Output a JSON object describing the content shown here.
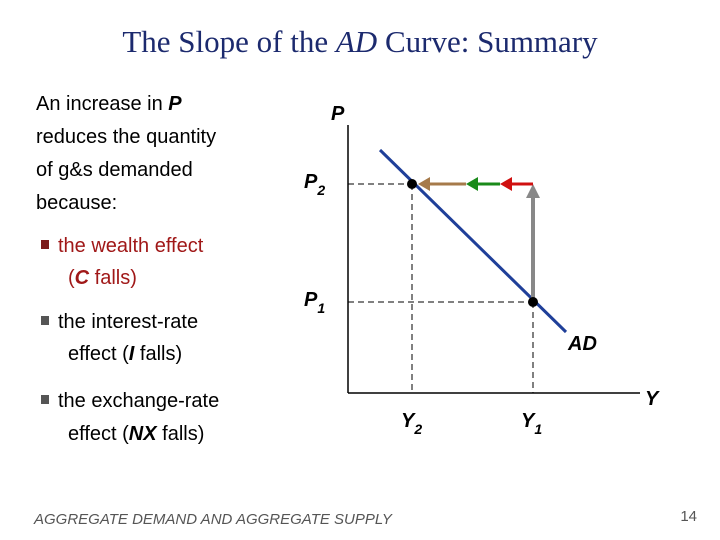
{
  "title": {
    "parts": [
      "The Slope of the ",
      "AD",
      " Curve: Summary"
    ]
  },
  "body": {
    "lines": [
      [
        "An increase in ",
        "P"
      ],
      [
        "reduces the quantity"
      ],
      [
        "of g&s demanded"
      ],
      [
        "because:"
      ]
    ]
  },
  "bullets": [
    {
      "lines": [
        [
          "the wealth effect"
        ],
        [
          "(",
          "C",
          " falls)"
        ]
      ]
    },
    {
      "lines": [
        [
          "the interest-rate"
        ],
        [
          "effect (",
          "I",
          " falls)"
        ]
      ]
    },
    {
      "lines": [
        [
          "the exchange-rate"
        ],
        [
          "effect (",
          "NX",
          " falls)"
        ]
      ]
    }
  ],
  "graph": {
    "y_axis_label": "P",
    "x_axis_label": "Y",
    "curve_label": "AD",
    "y_ticks": [
      {
        "main": "P",
        "sub": "2"
      },
      {
        "main": "P",
        "sub": "1"
      }
    ],
    "x_ticks": [
      {
        "main": "Y",
        "sub": "2"
      },
      {
        "main": "Y",
        "sub": "1"
      }
    ]
  },
  "footer": {
    "text": "AGGREGATE DEMAND AND AGGREGATE SUPPLY",
    "page": "14"
  }
}
